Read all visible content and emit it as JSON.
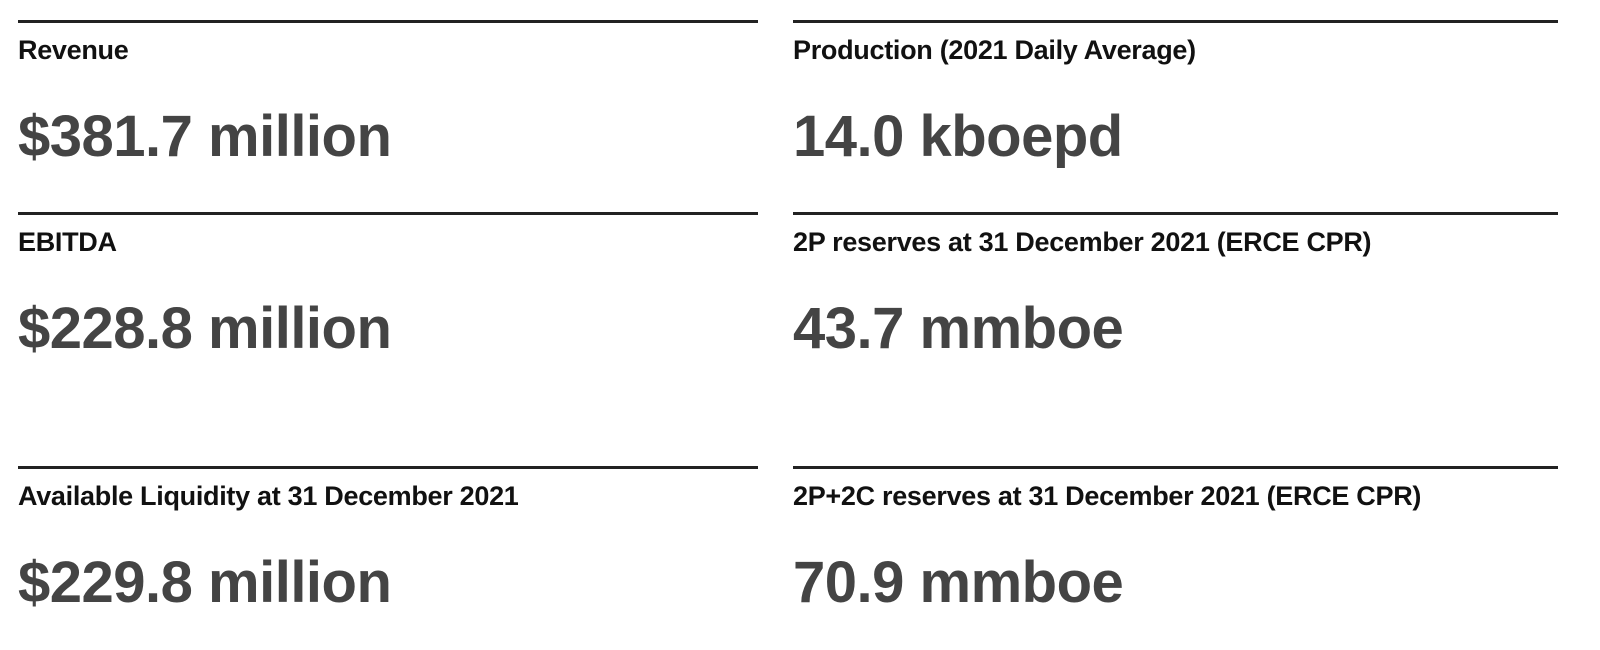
{
  "metrics": [
    {
      "label": "Revenue",
      "value": "$381.7 million"
    },
    {
      "label": "Production (2021 Daily Average)",
      "value": "14.0 kboepd"
    },
    {
      "label": "EBITDA",
      "value": "$228.8 million"
    },
    {
      "label": "2P reserves at 31 December 2021 (ERCE CPR)",
      "value": "43.7 mmboe"
    },
    {
      "label": "Available Liquidity at 31 December 2021",
      "value": "$229.8 million"
    },
    {
      "label": "2P+2C reserves at 31 December 2021 (ERCE CPR)",
      "value": "70.9 mmboe"
    }
  ]
}
